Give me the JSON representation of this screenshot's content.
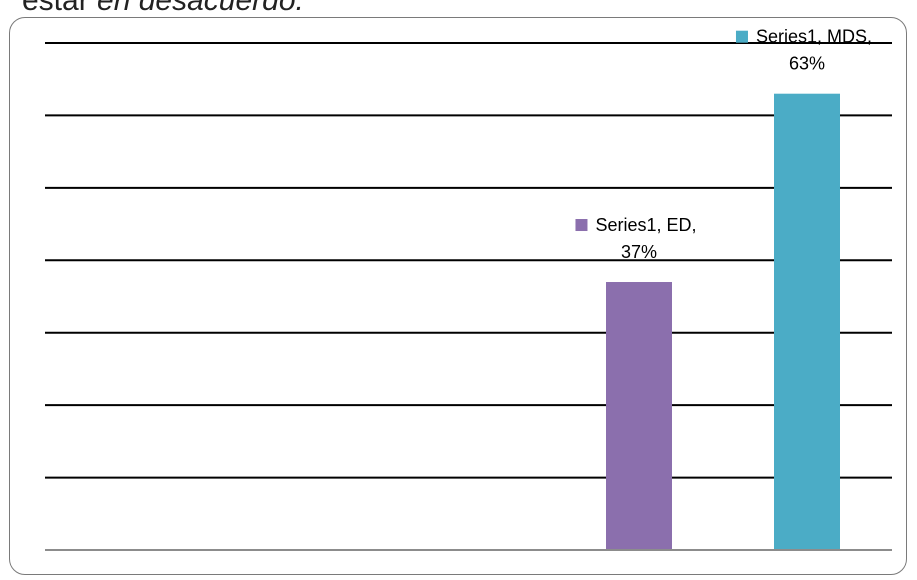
{
  "caption": {
    "part1": "estar ",
    "part2": "en desacuerdo."
  },
  "chart_data": {
    "type": "bar",
    "categories": [
      "ED",
      "MDS"
    ],
    "series": [
      {
        "name": "Series1",
        "values": [
          37,
          63
        ]
      }
    ],
    "colors": [
      "#8B6FAD",
      "#4BACC6"
    ],
    "data_labels": [
      {
        "line1": "Series1, ED,",
        "line2": "37%"
      },
      {
        "line1": "Series1, MDS,",
        "line2": "63%"
      }
    ],
    "ylim": [
      0,
      70
    ],
    "grid": true,
    "title": "",
    "xlabel": "",
    "ylabel": ""
  }
}
